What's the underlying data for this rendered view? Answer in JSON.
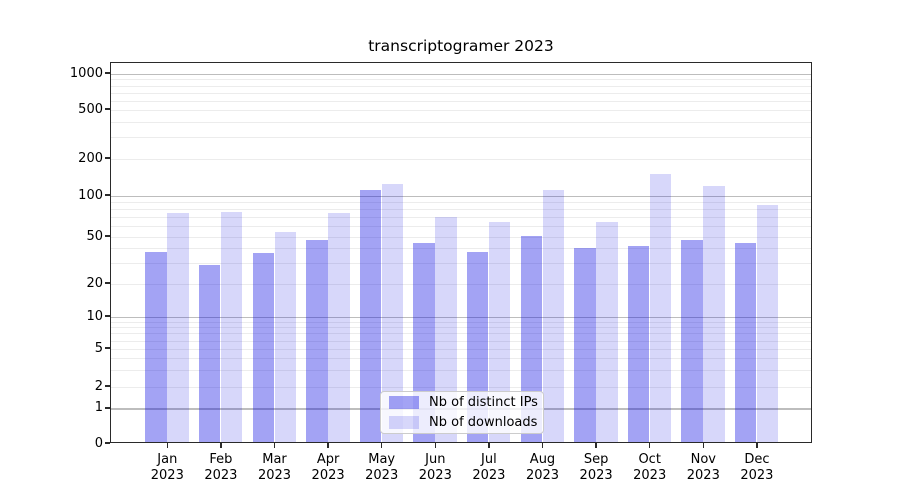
{
  "title": "transcriptogramer 2023",
  "chart_data": {
    "type": "bar",
    "title": "transcriptogramer 2023",
    "categories": [
      "Jan",
      "Feb",
      "Mar",
      "Apr",
      "May",
      "Jun",
      "Jul",
      "Aug",
      "Sep",
      "Oct",
      "Nov",
      "Dec"
    ],
    "year": "2023",
    "series": [
      {
        "name": "Nb of distinct IPs",
        "color": "rgba(0,0,225,0.36)",
        "values": [
          36,
          28,
          35,
          45,
          108,
          43,
          36,
          49,
          39,
          40,
          45,
          43
        ]
      },
      {
        "name": "Nb of downloads",
        "color": "rgba(0,0,225,0.155)",
        "values": [
          72,
          74,
          53,
          72,
          120,
          68,
          62,
          108,
          62,
          145,
          116,
          83
        ]
      }
    ],
    "xlabel": "",
    "ylabel": "",
    "yscale": "symlog",
    "y_ticks": [
      0,
      1,
      2,
      5,
      10,
      20,
      50,
      100,
      200,
      500,
      1000
    ],
    "ylim": [
      0,
      1230
    ],
    "grid": true,
    "grid_major_values": [
      1,
      10,
      100,
      1000
    ],
    "legend_position": "lower center inside plot",
    "colors": {
      "bar_distinct_ips_rendered": "#a5a5f4",
      "bar_downloads_rendered": "#d8d8fa",
      "grid_major": "#bdbdbd",
      "grid_minor": "#ececec",
      "axis": "#2a2a2a",
      "background": "#ffffff"
    }
  }
}
